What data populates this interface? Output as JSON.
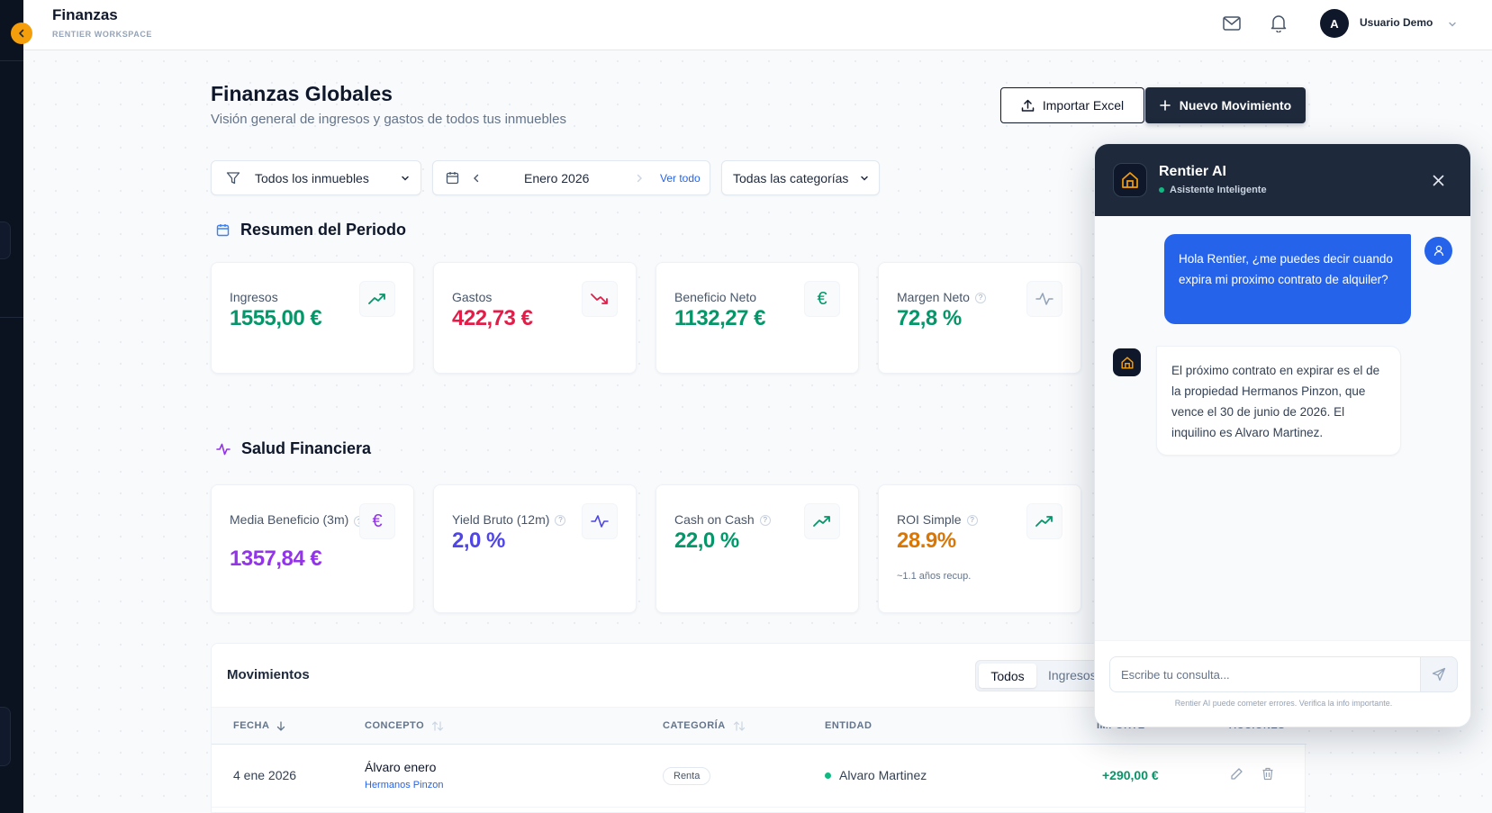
{
  "topbar": {
    "title": "Finanzas",
    "workspace": "RENTIER WORKSPACE",
    "user_initial": "A",
    "user_name": "Usuario Demo"
  },
  "page": {
    "title": "Finanzas Globales",
    "subtitle": "Visión general de ingresos y gastos de todos tus inmuebles",
    "import_label": "Importar Excel",
    "new_label": "Nuevo Movimiento"
  },
  "filters": {
    "property": "Todos los inmuebles",
    "month": "Enero 2026",
    "view_all": "Ver todo",
    "category": "Todas las categorías"
  },
  "summary": {
    "title": "Resumen del Periodo",
    "cards": [
      {
        "label": "Ingresos",
        "value": "1555,00 €"
      },
      {
        "label": "Gastos",
        "value": "422,73 €"
      },
      {
        "label": "Beneficio Neto",
        "value": "1132,27 €"
      },
      {
        "label": "Margen Neto",
        "value": "72,8 %"
      }
    ]
  },
  "health": {
    "title": "Salud Financiera",
    "cards": [
      {
        "label": "Media Beneficio (3m)",
        "value": "1357,84 €"
      },
      {
        "label": "Yield Bruto (12m)",
        "value": "2,0 %"
      },
      {
        "label": "Cash on Cash",
        "value": "22,0 %"
      },
      {
        "label": "ROI Simple",
        "value": "28.9%",
        "note": "~1.1 años recup."
      }
    ]
  },
  "movements": {
    "title": "Movimientos",
    "tabs": [
      "Todos",
      "Ingresos"
    ],
    "columns": [
      "FECHA",
      "CONCEPTO",
      "CATEGORÍA",
      "ENTIDAD",
      "IMPORTE",
      "ACCIONES"
    ],
    "rows": [
      {
        "date": "4 ene 2026",
        "concept": "Álvaro enero",
        "property": "Hermanos Pinzon",
        "category": "Renta",
        "entity": "Alvaro Martinez",
        "amount": "+290,00 €"
      }
    ]
  },
  "chat": {
    "name": "Rentier AI",
    "status": "Asistente Inteligente",
    "user_message": "Hola Rentier, ¿me puedes decir cuando expira mi proximo contrato de alquiler?",
    "bot_message": "El próximo contrato en expirar es el de la propiedad Hermanos Pinzon, que vence el 30 de junio de 2026. El inquilino es Alvaro Martinez.",
    "input_placeholder": "Escribe tu consulta...",
    "disclaimer": "Rentier AI puede cometer errores. Verifica la info importante."
  },
  "colors": {
    "green": "#059669",
    "red": "#e11d48",
    "purple": "#9333ea",
    "indigo": "#4f46e5",
    "orange": "#d97706",
    "chat_header": "#1e293b",
    "chat_user_bubble": "#2563eb",
    "accent_amber": "#f59e0b"
  }
}
